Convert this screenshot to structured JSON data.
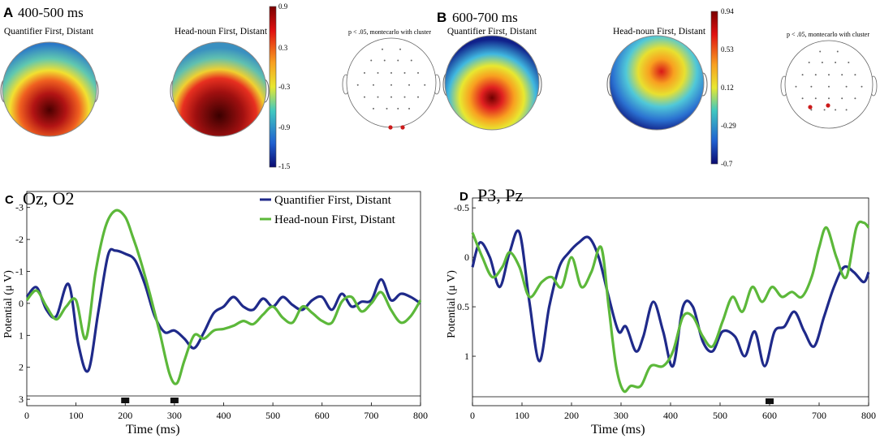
{
  "panels": {
    "A": {
      "letter": "A",
      "window": "400-500 ms"
    },
    "B": {
      "letter": "B",
      "window": "600-700 ms"
    },
    "C": {
      "letter": "C",
      "electrodes": "Oz, O2"
    },
    "D": {
      "letter": "D",
      "electrodes": "P3, Pz"
    }
  },
  "topo_titles": {
    "a1": "Quantifier First, Distant",
    "a2": "Head-noun First, Distant",
    "a3": "p < .05, montecarlo with cluster",
    "b1": "Quantifier First, Distant",
    "b2": "Head-noun First, Distant",
    "b3": "p < .05, montecarlo with cluster"
  },
  "colorbars": {
    "A": {
      "ticks": [
        "0.9",
        "0.3",
        "-0.3",
        "-0.9",
        "-1.5"
      ]
    },
    "B": {
      "ticks": [
        "0.94",
        "0.53",
        "0.12",
        "-0.29",
        "-0.7"
      ]
    }
  },
  "colors": {
    "series1": "#1f2a8a",
    "series2": "#5cb83a"
  },
  "chart_data": [
    {
      "type": "line",
      "title": "Oz, O2",
      "xlabel": "Time (ms)",
      "ylabel": "Potential (μ V)",
      "xlim": [
        0,
        800
      ],
      "ylim": [
        -3.5,
        3.2
      ],
      "y_reversed": true,
      "xticks": [
        0,
        100,
        200,
        300,
        400,
        500,
        600,
        700,
        800
      ],
      "yticks": [
        -3,
        -2,
        -1,
        0,
        1,
        2,
        3
      ],
      "yticklabels": [
        "-3",
        "-2",
        "-1",
        "0",
        "1",
        "2",
        "3"
      ],
      "legend": [
        "Quantifier First, Distant",
        "Head-noun First, Distant"
      ],
      "markers_ms": [
        200,
        300
      ],
      "series": [
        {
          "name": "Quantifier First, Distant",
          "x": [
            0,
            20,
            40,
            60,
            85,
            105,
            125,
            145,
            165,
            180,
            200,
            220,
            240,
            260,
            280,
            300,
            320,
            340,
            360,
            380,
            400,
            420,
            440,
            460,
            480,
            500,
            520,
            540,
            560,
            580,
            600,
            620,
            640,
            660,
            680,
            700,
            720,
            740,
            760,
            780,
            800
          ],
          "y": [
            -0.2,
            -0.5,
            0.2,
            0.4,
            -0.6,
            1.3,
            2.1,
            0.3,
            -1.5,
            -1.65,
            -1.55,
            -1.35,
            -0.6,
            0.4,
            0.9,
            0.85,
            1.1,
            1.4,
            0.9,
            0.3,
            0.1,
            -0.2,
            0.1,
            0.2,
            -0.15,
            0.1,
            -0.2,
            0.05,
            0.2,
            -0.1,
            -0.2,
            0.2,
            -0.3,
            0.1,
            -0.05,
            -0.1,
            -0.75,
            -0.1,
            -0.3,
            -0.2,
            0.0
          ]
        },
        {
          "name": "Head-noun First, Distant",
          "x": [
            0,
            20,
            40,
            60,
            80,
            100,
            120,
            140,
            160,
            180,
            200,
            215,
            230,
            250,
            270,
            290,
            305,
            320,
            340,
            360,
            380,
            400,
            420,
            440,
            460,
            480,
            500,
            520,
            540,
            560,
            580,
            600,
            620,
            640,
            660,
            680,
            700,
            720,
            740,
            760,
            780,
            800
          ],
          "y": [
            -0.1,
            -0.4,
            0.1,
            0.5,
            0.1,
            -0.1,
            1.1,
            -1.0,
            -2.4,
            -2.9,
            -2.7,
            -2.1,
            -1.4,
            -0.3,
            0.9,
            2.2,
            2.5,
            1.8,
            1.0,
            1.1,
            0.85,
            0.8,
            0.7,
            0.55,
            0.65,
            0.35,
            0.1,
            0.45,
            0.6,
            0.1,
            0.3,
            0.55,
            0.6,
            -0.05,
            -0.2,
            0.25,
            0.0,
            -0.35,
            0.2,
            0.6,
            0.4,
            -0.1
          ]
        }
      ]
    },
    {
      "type": "line",
      "title": "P3, Pz",
      "xlabel": "Time (ms)",
      "ylabel": "Potential (μ V)",
      "xlim": [
        0,
        800
      ],
      "ylim": [
        -0.6,
        1.5
      ],
      "y_reversed": true,
      "xticks": [
        0,
        100,
        200,
        300,
        400,
        500,
        600,
        700,
        800
      ],
      "yticks": [
        -0.5,
        0,
        0.5,
        1
      ],
      "yticklabels": [
        "-0.5",
        "0",
        "0.5",
        "1"
      ],
      "legend": [],
      "markers_ms": [
        600
      ],
      "series": [
        {
          "name": "Quantifier First, Distant",
          "x": [
            0,
            15,
            35,
            55,
            75,
            95,
            115,
            135,
            155,
            175,
            195,
            215,
            235,
            255,
            275,
            295,
            310,
            330,
            345,
            365,
            385,
            405,
            425,
            445,
            465,
            485,
            505,
            530,
            550,
            570,
            590,
            610,
            630,
            650,
            670,
            690,
            710,
            730,
            750,
            770,
            790,
            800
          ],
          "y": [
            0.1,
            -0.15,
            0.0,
            0.3,
            -0.05,
            -0.25,
            0.45,
            1.05,
            0.5,
            0.1,
            -0.05,
            -0.15,
            -0.2,
            0.0,
            0.4,
            0.75,
            0.7,
            0.95,
            0.8,
            0.45,
            0.75,
            1.1,
            0.5,
            0.5,
            0.85,
            0.95,
            0.75,
            0.8,
            1.0,
            0.75,
            1.1,
            0.75,
            0.7,
            0.55,
            0.75,
            0.9,
            0.6,
            0.3,
            0.1,
            0.15,
            0.25,
            0.15
          ]
        },
        {
          "name": "Head-noun First, Distant",
          "x": [
            0,
            20,
            40,
            60,
            75,
            95,
            115,
            140,
            160,
            180,
            200,
            220,
            240,
            260,
            275,
            290,
            305,
            320,
            340,
            360,
            385,
            405,
            425,
            445,
            465,
            485,
            505,
            525,
            545,
            565,
            585,
            605,
            625,
            645,
            665,
            685,
            700,
            715,
            735,
            755,
            775,
            790,
            800
          ],
          "y": [
            -0.25,
            0.0,
            0.2,
            0.1,
            -0.05,
            0.1,
            0.4,
            0.25,
            0.2,
            0.3,
            0.0,
            0.3,
            0.15,
            -0.1,
            0.5,
            1.1,
            1.35,
            1.3,
            1.3,
            1.1,
            1.1,
            0.95,
            0.6,
            0.6,
            0.8,
            0.9,
            0.65,
            0.4,
            0.55,
            0.3,
            0.45,
            0.3,
            0.4,
            0.35,
            0.4,
            0.2,
            -0.1,
            -0.3,
            0.0,
            0.2,
            -0.3,
            -0.35,
            -0.3
          ]
        }
      ]
    }
  ]
}
